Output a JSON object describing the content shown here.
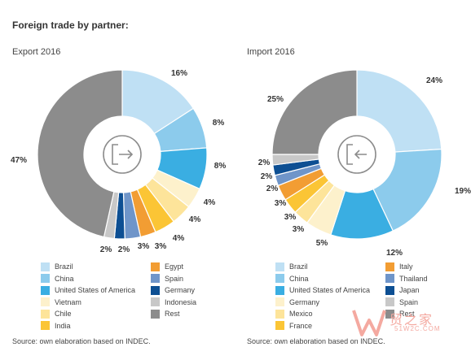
{
  "title": "Foreign trade by partner:",
  "chart_data": [
    {
      "type": "pie",
      "title": "Export 2016",
      "slices": [
        {
          "name": "Brazil",
          "value": 16,
          "label": "16%",
          "color": "#bfe0f4"
        },
        {
          "name": "China",
          "value": 8,
          "label": "8%",
          "color": "#8ccbec"
        },
        {
          "name": "United States of America",
          "value": 8,
          "label": "8%",
          "color": "#3aaee2"
        },
        {
          "name": "Vietnam",
          "value": 4,
          "label": "4%",
          "color": "#fdf1cc"
        },
        {
          "name": "Chile",
          "value": 4,
          "label": "4%",
          "color": "#fde49a"
        },
        {
          "name": "India",
          "value": 4,
          "label": "4%",
          "color": "#fbc535"
        },
        {
          "name": "Egypt",
          "value": 3,
          "label": "3%",
          "color": "#f29d33"
        },
        {
          "name": "Spain",
          "value": 3,
          "label": "3%",
          "color": "#6f95c9"
        },
        {
          "name": "Germany",
          "value": 2,
          "label": "2%",
          "color": "#0d4f93"
        },
        {
          "name": "Indonesia",
          "value": 2,
          "label": "2%",
          "color": "#c8c8c8"
        },
        {
          "name": "Rest",
          "value": 47,
          "label": "47%",
          "color": "#8c8c8c"
        }
      ],
      "source": "Source: own elaboration based on INDEC."
    },
    {
      "type": "pie",
      "title": "Import 2016",
      "slices": [
        {
          "name": "Brazil",
          "value": 24,
          "label": "24%",
          "color": "#bfe0f4"
        },
        {
          "name": "China",
          "value": 19,
          "label": "19%",
          "color": "#8ccbec"
        },
        {
          "name": "United States of America",
          "value": 12,
          "label": "12%",
          "color": "#3aaee2"
        },
        {
          "name": "Germany",
          "value": 5,
          "label": "5%",
          "color": "#fdf1cc"
        },
        {
          "name": "Mexico",
          "value": 3,
          "label": "3%",
          "color": "#fde49a"
        },
        {
          "name": "France",
          "value": 3,
          "label": "3%",
          "color": "#fbc535"
        },
        {
          "name": "Italy",
          "value": 3,
          "label": "3%",
          "color": "#f29d33"
        },
        {
          "name": "Thailand",
          "value": 2,
          "label": "2%",
          "color": "#6f95c9"
        },
        {
          "name": "Japan",
          "value": 2,
          "label": "2%",
          "color": "#0d4f93"
        },
        {
          "name": "Spain",
          "value": 2,
          "label": "2%",
          "color": "#c8c8c8"
        },
        {
          "name": "Rest",
          "value": 25,
          "label": "25%",
          "color": "#8c8c8c"
        }
      ],
      "source": "Source: own elaboration based on INDEC."
    }
  ],
  "watermark": {
    "main": "贸之家",
    "sub": "51W2C.COM"
  }
}
